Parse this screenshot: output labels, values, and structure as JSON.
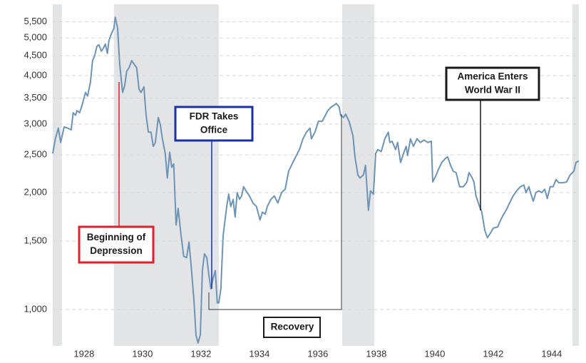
{
  "chart_data": {
    "type": "line",
    "x": [
      1926.93,
      1927.02,
      1927.12,
      1927.2,
      1927.32,
      1927.44,
      1927.56,
      1927.63,
      1927.71,
      1927.76,
      1927.85,
      1927.93,
      1928.05,
      1928.12,
      1928.22,
      1928.29,
      1928.37,
      1928.44,
      1928.51,
      1928.59,
      1928.66,
      1928.73,
      1928.8,
      1928.85,
      1928.93,
      1929.02,
      1929.07,
      1929.15,
      1929.22,
      1929.32,
      1929.39,
      1929.46,
      1929.54,
      1929.63,
      1929.71,
      1929.8,
      1929.88,
      1929.95,
      1930.05,
      1930.12,
      1930.2,
      1930.29,
      1930.37,
      1930.44,
      1930.54,
      1930.61,
      1930.68,
      1930.78,
      1930.85,
      1930.93,
      1931.0,
      1931.07,
      1931.15,
      1931.22,
      1931.32,
      1931.41,
      1931.51,
      1931.59,
      1931.66,
      1931.76,
      1931.83,
      1931.9,
      1931.98,
      1932.05,
      1932.12,
      1932.2,
      1932.27,
      1932.34,
      1932.41,
      1932.49,
      1932.56,
      1932.61,
      1932.68,
      1932.76,
      1932.88,
      1932.95,
      1933.02,
      1933.1,
      1933.17,
      1933.24,
      1933.32,
      1933.39,
      1933.46,
      1933.54,
      1933.66,
      1933.78,
      1933.9,
      1934.02,
      1934.1,
      1934.2,
      1934.27,
      1934.39,
      1934.51,
      1934.63,
      1934.76,
      1934.88,
      1935.0,
      1935.12,
      1935.24,
      1935.37,
      1935.49,
      1935.61,
      1935.73,
      1935.78,
      1935.9,
      1936.02,
      1936.15,
      1936.22,
      1936.34,
      1936.46,
      1936.54,
      1936.63,
      1936.73,
      1936.78,
      1936.88,
      1936.95,
      1937.07,
      1937.2,
      1937.27,
      1937.37,
      1937.44,
      1937.56,
      1937.63,
      1937.73,
      1937.8,
      1937.9,
      1937.98,
      1938.05,
      1938.17,
      1938.29,
      1938.41,
      1938.46,
      1938.54,
      1938.66,
      1938.73,
      1938.83,
      1938.93,
      1939.02,
      1939.07,
      1939.17,
      1939.27,
      1939.39,
      1939.51,
      1939.63,
      1939.76,
      1939.88,
      1939.93,
      1940.05,
      1940.12,
      1940.24,
      1940.37,
      1940.44,
      1940.54,
      1940.63,
      1940.73,
      1940.85,
      1940.98,
      1941.1,
      1941.17,
      1941.27,
      1941.34,
      1941.41,
      1941.51,
      1941.61,
      1941.71,
      1941.8,
      1941.9,
      1942.0,
      1942.15,
      1942.24,
      1942.34,
      1942.44,
      1942.56,
      1942.68,
      1942.8,
      1942.93,
      1943.05,
      1943.12,
      1943.22,
      1943.29,
      1943.37,
      1943.46,
      1943.56,
      1943.66,
      1943.76,
      1943.85,
      1943.95,
      1944.05,
      1944.15,
      1944.24,
      1944.39,
      1944.51,
      1944.63,
      1944.76,
      1944.83,
      1944.93
    ],
    "values": [
      2520,
      2750,
      2930,
      2690,
      2950,
      2930,
      2900,
      3210,
      3160,
      3250,
      3210,
      3350,
      3620,
      3540,
      3850,
      4370,
      4510,
      4760,
      4800,
      4620,
      4700,
      4820,
      4560,
      4910,
      5110,
      5290,
      5650,
      5290,
      4280,
      3620,
      3770,
      4100,
      4190,
      4370,
      4280,
      4190,
      3690,
      3620,
      3740,
      3180,
      2860,
      2860,
      2630,
      2690,
      3120,
      2990,
      2750,
      2520,
      2180,
      2540,
      2320,
      2370,
      1650,
      1820,
      1550,
      1370,
      1360,
      1490,
      1310,
      1060,
      860,
      820,
      860,
      1260,
      1390,
      1360,
      1230,
      1130,
      1200,
      1260,
      1040,
      1040,
      1130,
      1550,
      1840,
      1980,
      1840,
      1920,
      1730,
      2000,
      1920,
      1960,
      2070,
      2020,
      1960,
      1880,
      1840,
      1700,
      1780,
      1760,
      1840,
      1920,
      1960,
      1880,
      2000,
      2040,
      2270,
      2370,
      2470,
      2580,
      2750,
      2860,
      2930,
      2750,
      2860,
      3050,
      3050,
      3120,
      3250,
      3320,
      3350,
      3390,
      3320,
      3160,
      3120,
      3180,
      3050,
      2800,
      2470,
      2220,
      2180,
      2220,
      2350,
      1800,
      2020,
      1980,
      2520,
      2580,
      2550,
      2750,
      2860,
      2690,
      2710,
      2580,
      2690,
      2390,
      2520,
      2630,
      2490,
      2750,
      2630,
      2750,
      2690,
      2730,
      2690,
      2710,
      2130,
      2220,
      2290,
      2390,
      2450,
      2470,
      2350,
      2270,
      2250,
      2070,
      2070,
      2130,
      2250,
      2190,
      2130,
      1960,
      1860,
      1780,
      1600,
      1530,
      1570,
      1620,
      1630,
      1690,
      1750,
      1800,
      1880,
      1960,
      2020,
      2070,
      2090,
      2000,
      2070,
      1980,
      1900,
      2000,
      2020,
      2000,
      2040,
      1930,
      2070,
      2070,
      2160,
      2120,
      2120,
      2130,
      2220,
      2270,
      2390,
      2410
    ],
    "color": "#6d93b5",
    "xlim": [
      1926.93,
      1944.93
    ],
    "xticks": [
      1928,
      1930,
      1932,
      1934,
      1936,
      1938,
      1940,
      1942,
      1944
    ],
    "ylim": [
      806,
      6000
    ],
    "log_scale_y": true,
    "yticks": [
      {
        "value": 1000,
        "label": "1,000"
      },
      {
        "value": 1500,
        "label": "1,500"
      },
      {
        "value": 2000,
        "label": "2,000"
      },
      {
        "value": 2500,
        "label": "2,500"
      },
      {
        "value": 3000,
        "label": "3,000"
      },
      {
        "value": 3500,
        "label": "3,500"
      },
      {
        "value": 4000,
        "label": "4,000"
      },
      {
        "value": 4500,
        "label": "4,500"
      },
      {
        "value": 5000,
        "label": "5,000"
      },
      {
        "value": 5500,
        "label": "5,500"
      }
    ],
    "grid": true,
    "shaded_periods": [
      [
        1926.93,
        1927.24
      ],
      [
        1929.02,
        1932.61
      ],
      [
        1936.83,
        1937.93
      ],
      [
        1944.71,
        1944.93
      ]
    ],
    "shade_color": "#e3e4e5",
    "annotations": [
      {
        "text": [
          "Beginning of",
          "Depression"
        ],
        "color": "#e0202a"
      },
      {
        "text": [
          "FDR Takes",
          "Office"
        ],
        "color": "#1a2fa8"
      },
      {
        "text": [
          "America Enters",
          "World War II"
        ],
        "color": "#1a1a1a"
      },
      {
        "text": [
          "Recovery"
        ],
        "color": "#1a1a1a"
      }
    ]
  }
}
